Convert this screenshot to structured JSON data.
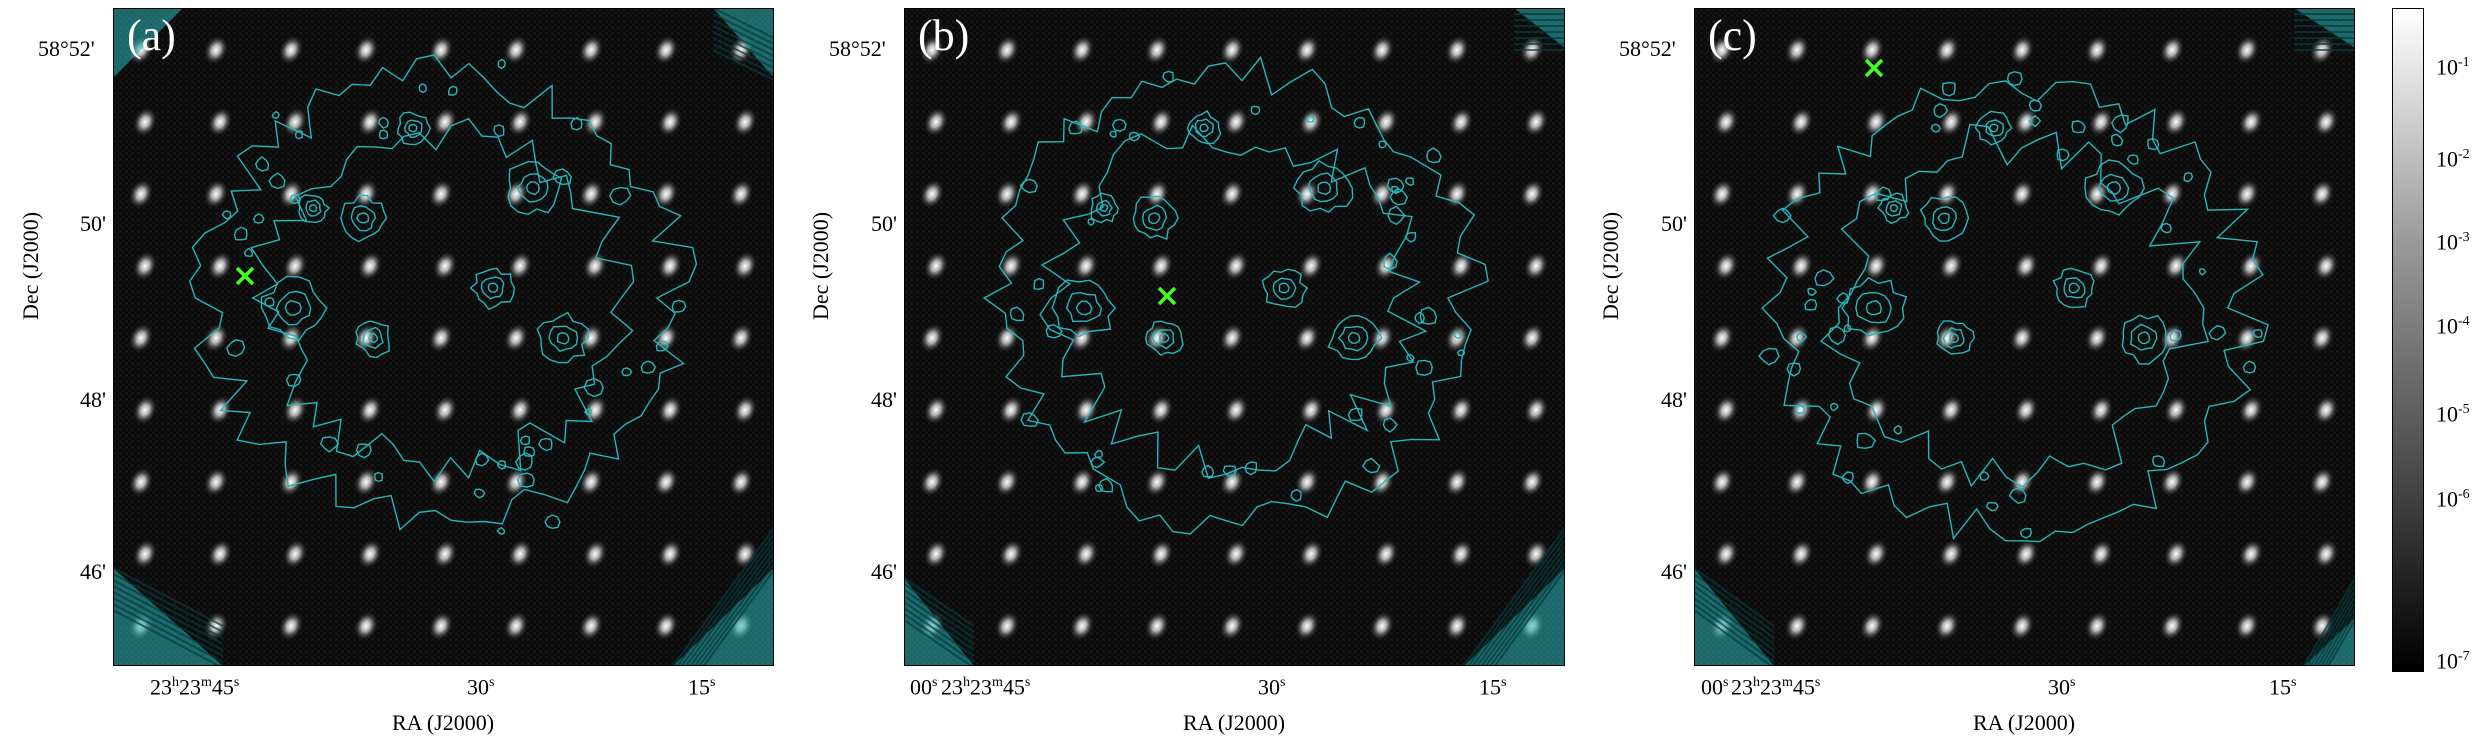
{
  "panels": [
    {
      "letter": "(a)",
      "marker": "green-x"
    },
    {
      "letter": "(b)",
      "marker": "green-x"
    },
    {
      "letter": "(c)",
      "marker": "green-x"
    }
  ],
  "axes": {
    "xlabel": "RA (J2000)",
    "ylabel": "Dec (J2000)",
    "yticks": [
      "58°52'",
      "50'",
      "48'",
      "46'"
    ],
    "xticks": [
      {
        "base": "23",
        "sup1": "h",
        "mid": "23",
        "sup2": "m",
        "rest": "45",
        "sup3": "s"
      },
      {
        "base": "30",
        "sup": "s"
      },
      {
        "base": "15",
        "sup": "s"
      },
      {
        "base": "00",
        "sup": "s"
      }
    ]
  },
  "colorbar": {
    "ticks": [
      "-1",
      "-2",
      "-3",
      "-4",
      "-5",
      "-6",
      "-7"
    ],
    "base": "10",
    "scale": "log"
  },
  "colors": {
    "contour": "#2ab5b8",
    "marker": "#44ff22",
    "background": "#050505",
    "sources": "#ffffff"
  }
}
